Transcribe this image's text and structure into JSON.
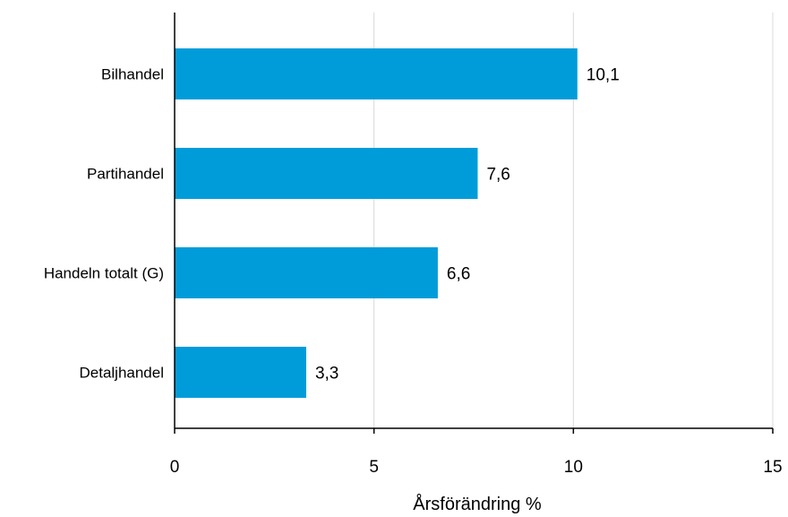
{
  "chart_data": {
    "type": "bar",
    "orientation": "horizontal",
    "categories": [
      "Bilhandel",
      "Partihandel",
      "Handeln totalt (G)",
      "Detaljhandel"
    ],
    "values": [
      10.1,
      7.6,
      6.6,
      3.3
    ],
    "value_labels": [
      "10,1",
      "7,6",
      "6,6",
      "3,3"
    ],
    "xlabel": "Årsförändring %",
    "xlim": [
      0,
      15
    ],
    "x_ticks": [
      0,
      5,
      10,
      15
    ],
    "x_tick_labels": [
      "0",
      "5",
      "10",
      "15"
    ],
    "grid": true,
    "bar_color": "#009cd9",
    "grid_color": "#d9d9d9",
    "axis_color": "#000000"
  }
}
